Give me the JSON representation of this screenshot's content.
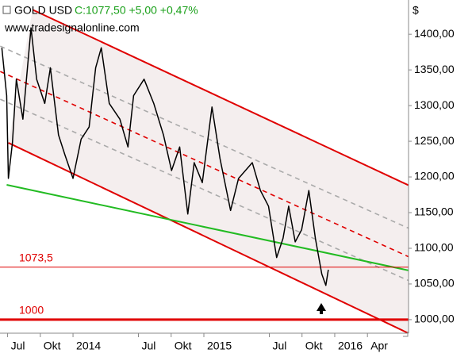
{
  "chart_data": {
    "type": "line",
    "subtitle": "C:1077,50 +5,00 +0,47%",
    "watermark": "www.tradesignalonline.com",
    "y_unit": "$",
    "series": [
      {
        "name": "GOLD USD",
        "color": "#000000",
        "x": [
          2013.456,
          2013.493,
          2013.506,
          2013.537,
          2013.567,
          2013.617,
          2013.679,
          2013.722,
          2013.784,
          2013.827,
          2013.889,
          2013.938,
          2014.0,
          2014.062,
          2014.123,
          2014.173,
          2014.216,
          2014.277,
          2014.358,
          2014.42,
          2014.463,
          2014.543,
          2014.617,
          2014.691,
          2014.753,
          2014.815,
          2014.877,
          2014.926,
          2014.988,
          2015.062,
          2015.123,
          2015.204,
          2015.265,
          2015.37,
          2015.432,
          2015.494,
          2015.556,
          2015.605,
          2015.648,
          2015.698,
          2015.747,
          2015.802,
          2015.852,
          2015.901,
          2015.932,
          2015.951
        ],
        "values": [
          1381,
          1314,
          1198,
          1248,
          1337,
          1281,
          1409,
          1337,
          1303,
          1353,
          1259,
          1231,
          1198,
          1253,
          1270,
          1353,
          1381,
          1303,
          1281,
          1242,
          1314,
          1337,
          1303,
          1259,
          1209,
          1242,
          1148,
          1220,
          1192,
          1298,
          1226,
          1153,
          1198,
          1220,
          1181,
          1159,
          1087,
          1114,
          1159,
          1109,
          1126,
          1181,
          1114,
          1064,
          1048,
          1070
        ]
      }
    ],
    "trendlines": [
      {
        "color": "#e00000",
        "style": "solid",
        "x": [
          2013.691,
          2016.623
        ],
        "values": [
          1434.4,
          1183.3
        ]
      },
      {
        "color": "#e00000",
        "style": "solid",
        "x": [
          2013.506,
          2016.561
        ],
        "values": [
          1247.8,
          981.1
        ]
      },
      {
        "color": "#e00000",
        "style": "dashed",
        "x": [
          2013.444,
          2016.623
        ],
        "values": [
          1347.8,
          1083.3
        ]
      },
      {
        "color": "#aaaaaa",
        "style": "dashed",
        "x": [
          2013.444,
          2016.623
        ],
        "values": [
          1383.3,
          1123.3
        ]
      },
      {
        "color": "#aaaaaa",
        "style": "dashed",
        "x": [
          2013.444,
          2016.623
        ],
        "values": [
          1308.9,
          1050
        ]
      },
      {
        "color": "#22bb22",
        "style": "solid",
        "x": [
          2013.493,
          2016.623
        ],
        "values": [
          1188.9,
          1066.7
        ]
      }
    ],
    "hlines": [
      {
        "value": 1073.5,
        "label": "1073,5",
        "color": "#e00000",
        "width": 1
      },
      {
        "value": 1000,
        "label": "1000",
        "color": "#e00000",
        "width": 3
      }
    ],
    "xlim": [
      2013.442,
      2016.564
    ],
    "xticks": [
      {
        "value": 2013.5,
        "label": "Jul"
      },
      {
        "value": 2013.75,
        "label": "Okt"
      },
      2014,
      {
        "value": 2014.5,
        "label": "Jul"
      },
      {
        "value": 2014.75,
        "label": "Okt"
      },
      2015,
      {
        "value": 2015.5,
        "label": "Jul"
      },
      {
        "value": 2015.75,
        "label": "Okt"
      },
      2016,
      {
        "value": 2016.25,
        "label": "Apr"
      }
    ],
    "ylim": [
      981,
      1448
    ],
    "yticks": [
      {
        "value": 1000,
        "label": "1000,00"
      },
      {
        "value": 1050,
        "label": "1050,00"
      },
      {
        "value": 1100,
        "label": "1100,00"
      },
      {
        "value": 1150,
        "label": "1150,00"
      },
      {
        "value": 1200,
        "label": "1200,00"
      },
      {
        "value": 1250,
        "label": "1250,00"
      },
      {
        "value": 1300,
        "label": "1300,00"
      },
      {
        "value": 1350,
        "label": "1350,00"
      },
      {
        "value": 1400,
        "label": "1400,00"
      }
    ],
    "grid": false
  }
}
